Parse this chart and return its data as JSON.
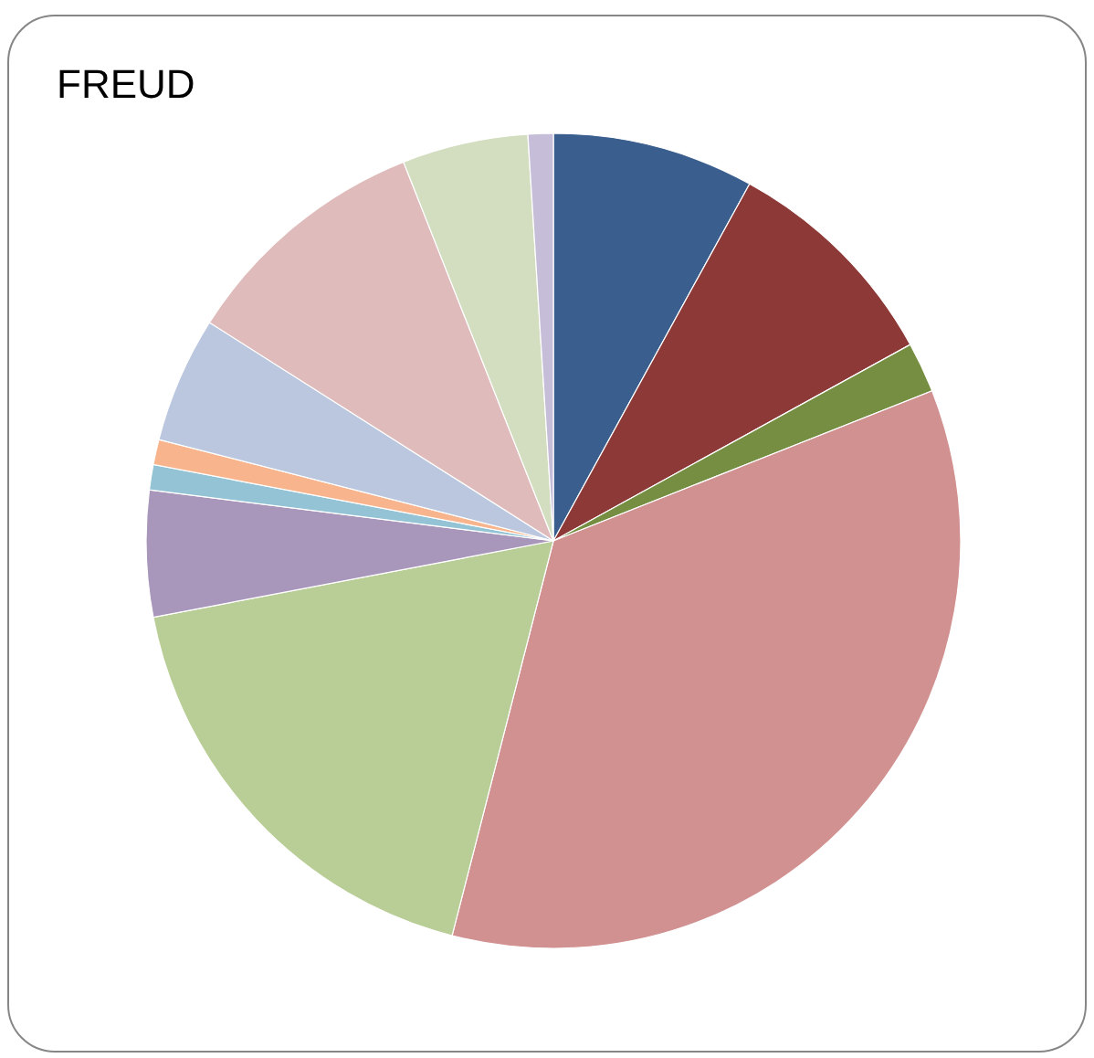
{
  "chart_data": {
    "type": "pie",
    "title": "FREUD",
    "categories": [
      null,
      null,
      null,
      null,
      null,
      null,
      null,
      null,
      null,
      null,
      null,
      null
    ],
    "values": [
      8,
      9,
      2,
      35,
      18,
      5,
      1,
      1,
      5,
      10,
      5,
      1
    ],
    "colors": [
      "#3a5f8f",
      "#8c3937",
      "#768e41",
      "#d29191",
      "#b9cd96",
      "#a897bb",
      "#93c3d4",
      "#f8b48c",
      "#bac7de",
      "#e0bbbb",
      "#d3dec0",
      "#c6bed8"
    ]
  }
}
